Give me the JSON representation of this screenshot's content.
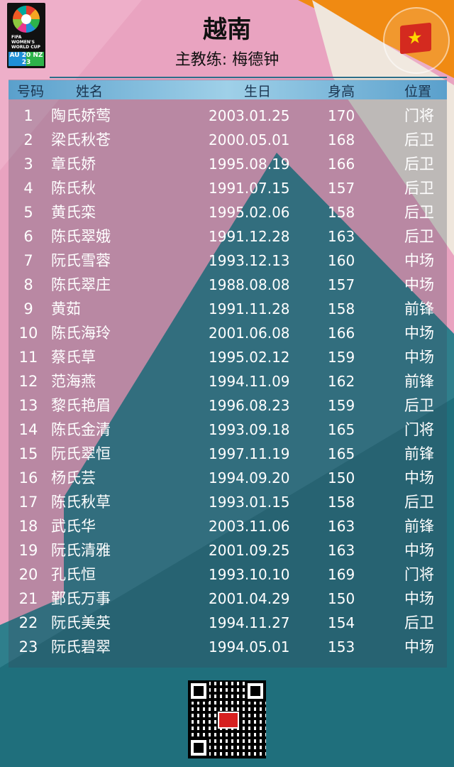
{
  "header": {
    "team": "越南",
    "coach": "主教练: 梅德钟",
    "logo_text": "FIFA WOMEN'S WORLD CUP",
    "logo_years": "AU 20 NZ 23",
    "flag_icon": "vietnam-flag",
    "colors": {
      "pink": "#e9a3c0",
      "orange": "#f08a12",
      "teal": "#2f7f8c",
      "header_bar": "#7ab8dc"
    }
  },
  "table": {
    "columns": [
      "号码",
      "姓名",
      "生日",
      "身高",
      "位置"
    ],
    "rows": [
      [
        "1",
        "陶氏娇莺",
        "2003.01.25",
        "170",
        "门将"
      ],
      [
        "2",
        "梁氏秋苍",
        "2000.05.01",
        "168",
        "后卫"
      ],
      [
        "3",
        "章氏娇",
        "1995.08.19",
        "166",
        "后卫"
      ],
      [
        "4",
        "陈氏秋",
        "1991.07.15",
        "157",
        "后卫"
      ],
      [
        "5",
        "黄氏栾",
        "1995.02.06",
        "158",
        "后卫"
      ],
      [
        "6",
        "陈氏翠娥",
        "1991.12.28",
        "163",
        "后卫"
      ],
      [
        "7",
        "阮氏雪蓉",
        "1993.12.13",
        "160",
        "中场"
      ],
      [
        "8",
        "陈氏翠庄",
        "1988.08.08",
        "157",
        "中场"
      ],
      [
        "9",
        "黄茹",
        "1991.11.28",
        "158",
        "前锋"
      ],
      [
        "10",
        "陈氏海玲",
        "2001.06.08",
        "166",
        "中场"
      ],
      [
        "11",
        "蔡氏草",
        "1995.02.12",
        "159",
        "中场"
      ],
      [
        "12",
        "范海燕",
        "1994.11.09",
        "162",
        "前锋"
      ],
      [
        "13",
        "黎氏艳眉",
        "1996.08.23",
        "159",
        "后卫"
      ],
      [
        "14",
        "陈氏金清",
        "1993.09.18",
        "165",
        "门将"
      ],
      [
        "15",
        "阮氏翠恒",
        "1997.11.19",
        "165",
        "前锋"
      ],
      [
        "16",
        "杨氏芸",
        "1994.09.20",
        "150",
        "中场"
      ],
      [
        "17",
        "陈氏秋草",
        "1993.01.15",
        "158",
        "后卫"
      ],
      [
        "18",
        "武氏华",
        "2003.11.06",
        "163",
        "前锋"
      ],
      [
        "19",
        "阮氏清雅",
        "2001.09.25",
        "163",
        "中场"
      ],
      [
        "20",
        "孔氏恒",
        "1993.10.10",
        "169",
        "门将"
      ],
      [
        "21",
        "鄞氏万事",
        "2001.04.29",
        "150",
        "中场"
      ],
      [
        "22",
        "阮氏美英",
        "1994.11.27",
        "154",
        "后卫"
      ],
      [
        "23",
        "阮氏碧翠",
        "1994.05.01",
        "153",
        "中场"
      ]
    ]
  },
  "footer": {
    "qr_icon": "qr-code"
  }
}
